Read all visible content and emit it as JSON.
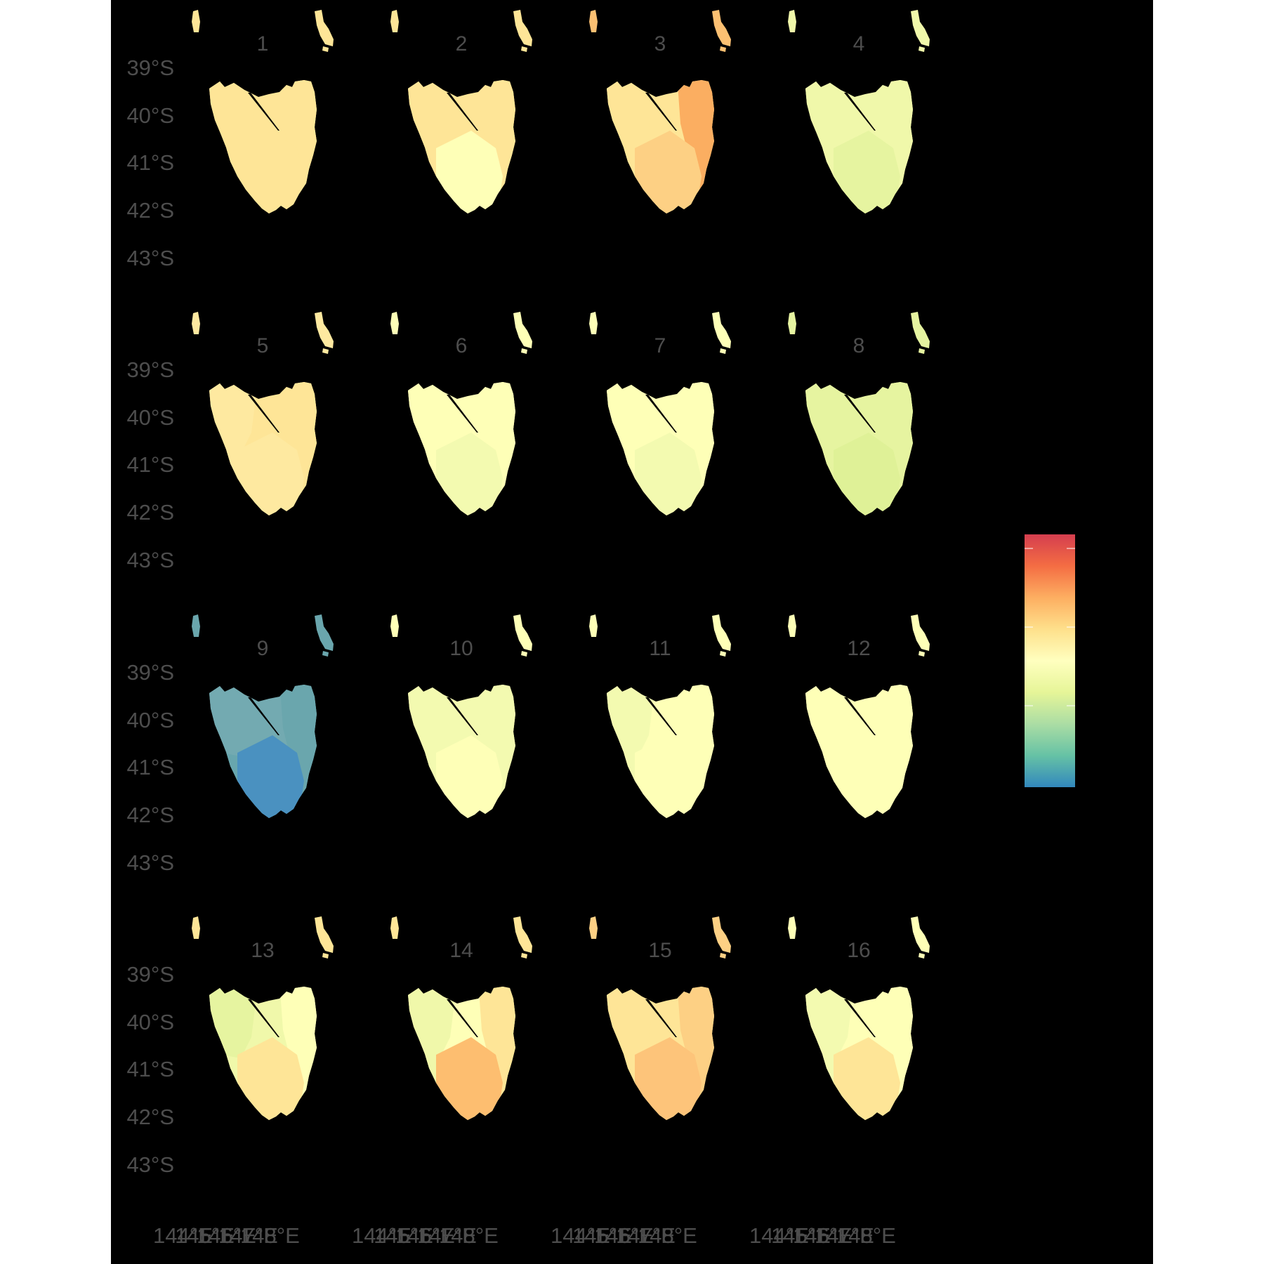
{
  "panels": [
    {
      "label": "1",
      "north": "#fee597",
      "south": "#fee597",
      "east": "#fee597",
      "west": "#fee597",
      "nw": "#fee597",
      "island": "#fee597"
    },
    {
      "label": "2",
      "north": "#fee597",
      "south": "#feffb7",
      "east": "#fee597",
      "west": "#fee597",
      "nw": "#fee597",
      "island": "#fee597"
    },
    {
      "label": "3",
      "north": "#fee597",
      "south": "#fdd084",
      "east": "#fbae61",
      "west": "#fee597",
      "nw": "#fee597",
      "island": "#fcc072"
    },
    {
      "label": "4",
      "north": "#f0f8aa",
      "south": "#e6f4a0",
      "east": "#f0f8aa",
      "west": "#f0f8aa",
      "nw": "#f0f8aa",
      "island": "#f0f8aa"
    },
    {
      "label": "5",
      "north": "#fee597",
      "south": "#fee9a0",
      "east": "#fee597",
      "west": "#fee9a0",
      "nw": "#fee9a0",
      "island": "#fee9a0"
    },
    {
      "label": "6",
      "north": "#feffb7",
      "south": "#f3fab0",
      "east": "#feffb7",
      "west": "#feffb7",
      "nw": "#feffb7",
      "island": "#feffb7"
    },
    {
      "label": "7",
      "north": "#feffb7",
      "south": "#f3fab0",
      "east": "#feffb7",
      "west": "#feffb7",
      "nw": "#feffb7",
      "island": "#feffb7"
    },
    {
      "label": "8",
      "north": "#e6f4a0",
      "south": "#dff197",
      "east": "#e6f4a0",
      "west": "#e6f4a0",
      "nw": "#e6f4a0",
      "island": "#e6f4a0"
    },
    {
      "label": "9",
      "north": "#73aab1",
      "south": "#4a91c0",
      "east": "#6aa6ad",
      "west": "#68a6ae",
      "nw": "#73aab1",
      "island": "#6aa6ad"
    },
    {
      "label": "10",
      "north": "#f3fab0",
      "south": "#feffb7",
      "east": "#f3fab0",
      "west": "#f3fab0",
      "nw": "#f3fab0",
      "island": "#feffb7"
    },
    {
      "label": "11",
      "north": "#feffb7",
      "south": "#feffb7",
      "east": "#feffb7",
      "west": "#f3fab0",
      "nw": "#f3fab0",
      "island": "#feffb7"
    },
    {
      "label": "12",
      "north": "#feffb7",
      "south": "#feffb7",
      "east": "#feffb7",
      "west": "#feffb7",
      "nw": "#feffb7",
      "island": "#feffb7"
    },
    {
      "label": "13",
      "north": "#f0f8aa",
      "south": "#fee597",
      "east": "#feffb7",
      "west": "#f0f8aa",
      "nw": "#e6f4a0",
      "island": "#fee597"
    },
    {
      "label": "14",
      "north": "#feffb7",
      "south": "#fdbe70",
      "east": "#fee597",
      "west": "#f0f8aa",
      "nw": "#f0f8aa",
      "island": "#fee597"
    },
    {
      "label": "15",
      "north": "#fee597",
      "south": "#fdc47a",
      "east": "#fdd084",
      "west": "#fee597",
      "nw": "#fee597",
      "island": "#fdd084"
    },
    {
      "label": "16",
      "north": "#feffb7",
      "south": "#fee597",
      "east": "#feffb7",
      "west": "#f3fab0",
      "nw": "#f3fab0",
      "island": "#feffb7"
    }
  ],
  "y_axis_labels": [
    "39°S",
    "40°S",
    "41°S",
    "42°S",
    "43°S"
  ],
  "x_axis_labels": [
    "144°E",
    "145°E",
    "146°E",
    "147°E",
    "148°E"
  ],
  "colorbar": {
    "palette": "Spectral (reversed)",
    "colors": [
      "#d53e4f",
      "#f46d43",
      "#fdae61",
      "#fee08b",
      "#ffffbf",
      "#e6f598",
      "#abdda4",
      "#66c2a5",
      "#3288bd"
    ]
  },
  "theme": {
    "background": "#000000",
    "label_color": "#4d4d4d"
  }
}
